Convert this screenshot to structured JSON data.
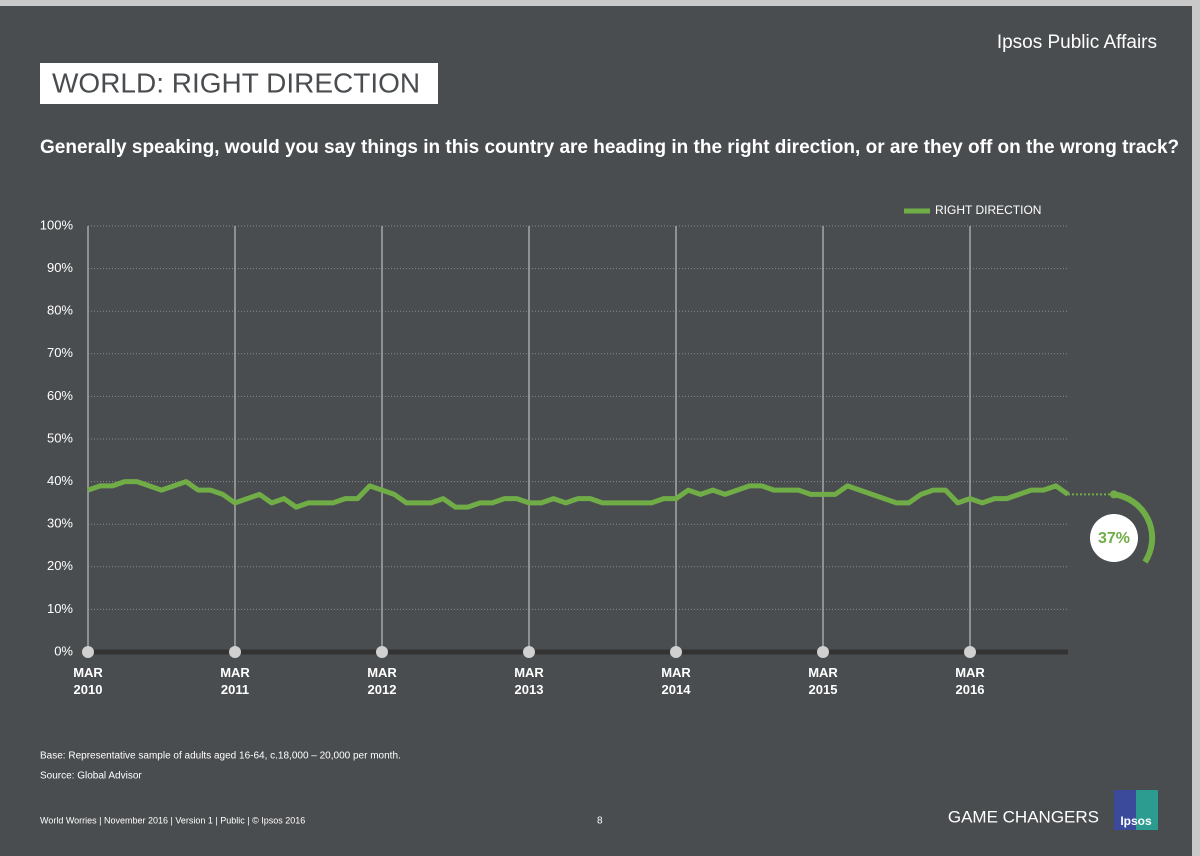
{
  "header": {
    "brand": "Ipsos Public Affairs",
    "title": "WORLD: RIGHT DIRECTION",
    "question": "Generally speaking, would you say things in this country are heading in the right direction, or are they off on the wrong track?"
  },
  "chart_data": {
    "type": "line",
    "x": [
      "2010-03",
      "2010-04",
      "2010-05",
      "2010-06",
      "2010-07",
      "2010-08",
      "2010-09",
      "2010-10",
      "2010-11",
      "2010-12",
      "2011-01",
      "2011-02",
      "2011-03",
      "2011-04",
      "2011-05",
      "2011-06",
      "2011-07",
      "2011-08",
      "2011-09",
      "2011-10",
      "2011-11",
      "2011-12",
      "2012-01",
      "2012-02",
      "2012-03",
      "2012-04",
      "2012-05",
      "2012-06",
      "2012-07",
      "2012-08",
      "2012-09",
      "2012-10",
      "2012-11",
      "2012-12",
      "2013-01",
      "2013-02",
      "2013-03",
      "2013-04",
      "2013-05",
      "2013-06",
      "2013-07",
      "2013-08",
      "2013-09",
      "2013-10",
      "2013-11",
      "2013-12",
      "2014-01",
      "2014-02",
      "2014-03",
      "2014-04",
      "2014-05",
      "2014-06",
      "2014-07",
      "2014-08",
      "2014-09",
      "2014-10",
      "2014-11",
      "2014-12",
      "2015-01",
      "2015-02",
      "2015-03",
      "2015-04",
      "2015-05",
      "2015-06",
      "2015-07",
      "2015-08",
      "2015-09",
      "2015-10",
      "2015-11",
      "2015-12",
      "2016-01",
      "2016-02",
      "2016-03",
      "2016-04",
      "2016-05",
      "2016-06",
      "2016-07",
      "2016-08",
      "2016-09",
      "2016-10",
      "2016-11"
    ],
    "series": [
      {
        "name": "RIGHT DIRECTION",
        "color": "#70ad47",
        "values": [
          38,
          39,
          39,
          40,
          40,
          39,
          38,
          39,
          40,
          38,
          38,
          37,
          35,
          36,
          37,
          35,
          36,
          34,
          35,
          35,
          35,
          36,
          36,
          39,
          38,
          37,
          35,
          35,
          35,
          36,
          34,
          34,
          35,
          35,
          36,
          36,
          35,
          35,
          36,
          35,
          36,
          36,
          35,
          35,
          35,
          35,
          35,
          36,
          36,
          38,
          37,
          38,
          37,
          38,
          39,
          39,
          38,
          38,
          38,
          37,
          37,
          37,
          39,
          38,
          37,
          36,
          35,
          35,
          37,
          38,
          38,
          35,
          36,
          35,
          36,
          36,
          37,
          38,
          38,
          39,
          37
        ]
      }
    ],
    "end_value": {
      "value": 37,
      "label": "37%"
    },
    "ylim": [
      0,
      100
    ],
    "yticks": [
      {
        "value": 0,
        "label": "0%"
      },
      {
        "value": 10,
        "label": "10%"
      },
      {
        "value": 20,
        "label": "20%"
      },
      {
        "value": 30,
        "label": "30%"
      },
      {
        "value": 40,
        "label": "40%"
      },
      {
        "value": 50,
        "label": "50%"
      },
      {
        "value": 60,
        "label": "60%"
      },
      {
        "value": 70,
        "label": "70%"
      },
      {
        "value": 80,
        "label": "80%"
      },
      {
        "value": 90,
        "label": "90%"
      },
      {
        "value": 100,
        "label": "100%"
      }
    ],
    "xticks": [
      {
        "value": "2010-03",
        "label": "MAR\n2010"
      },
      {
        "value": "2011-03",
        "label": "MAR\n2011"
      },
      {
        "value": "2012-03",
        "label": "MAR\n2012"
      },
      {
        "value": "2013-03",
        "label": "MAR\n2013"
      },
      {
        "value": "2014-03",
        "label": "MAR\n2014"
      },
      {
        "value": "2015-03",
        "label": "MAR\n2015"
      },
      {
        "value": "2016-03",
        "label": "MAR\n2016"
      }
    ],
    "grid": true,
    "legend": "top-right"
  },
  "notes": {
    "base": "Base: Representative sample of adults aged 16-64, c.18,000 – 20,000 per month.",
    "source": "Source: Global Advisor"
  },
  "footer": {
    "info": "World Worries | November 2016 | Version 1 | Public | © Ipsos 2016",
    "page": "8",
    "tagline": "GAME CHANGERS",
    "logo": "Ipsos"
  }
}
